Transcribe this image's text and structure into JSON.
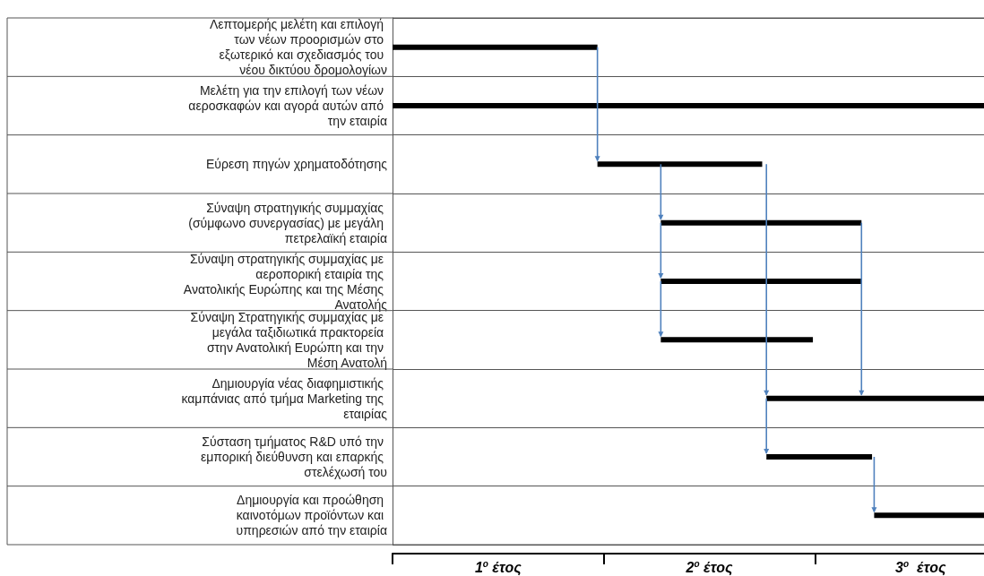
{
  "chart_data": {
    "type": "bar",
    "orientation": "horizontal",
    "categories": [
      "Λεπτομερής μελέτη και επιλογή των νέων προορισμών στο εξωτερικό και σχεδιασμός του νέου δικτύου δρομολογίων",
      "Μελέτη για την επιλογή των νέων αεροσκαφών και αγορά αυτών από την εταιρία",
      "Εύρεση πηγών χρηματοδότησης",
      "Σύναψη στρατηγικής συμμαχίας (σύμφωνο συνεργασίας) με μεγάλη πετρελαϊκή εταιρία",
      " Σύναψη στρατηγικής συμμαχίας με αεροπορική εταιρία της Ανατολικής Ευρώπης και της Μέσης Ανατολής",
      "Σύναψη Στρατηγικής συμμαχίας με μεγάλα ταξιδιωτικά πρακτορεία στην Ανατολική Ευρώπη και την Μέση Ανατολή",
      "Δημιουργία νέας διαφημιστικής καμπάνιας από τμήμα Marketing της εταιρίας",
      "Σύσταση τμήματος R&D υπό την εμπορική διεύθυνση και επαρκής στελέχωσή του",
      "Δημιουργία και προώθηση καινοτόμων προϊόντων και υπηρεσιών από την εταιρία"
    ],
    "base": [
      0,
      0,
      0.97,
      1.27,
      1.27,
      1.27,
      1.77,
      1.77,
      2.28
    ],
    "values": [
      0.97,
      2.8,
      0.78,
      0.95,
      0.95,
      0.72,
      1.03,
      0.5,
      0.52
    ],
    "color": "#000000",
    "xlim": [
      0,
      2.8
    ],
    "xticks": [
      {
        "value": 0,
        "label": null
      },
      {
        "value": 0.5,
        "label": "1$^{ο}$ έτος"
      },
      {
        "value": 1,
        "label": null
      },
      {
        "value": 1.5,
        "label": "2$^{ο}$ έτος"
      },
      {
        "value": 2,
        "label": null
      },
      {
        "value": 2.5,
        "label": "3$^{ο}$  έτος"
      }
    ],
    "grid": "y"
  }
}
